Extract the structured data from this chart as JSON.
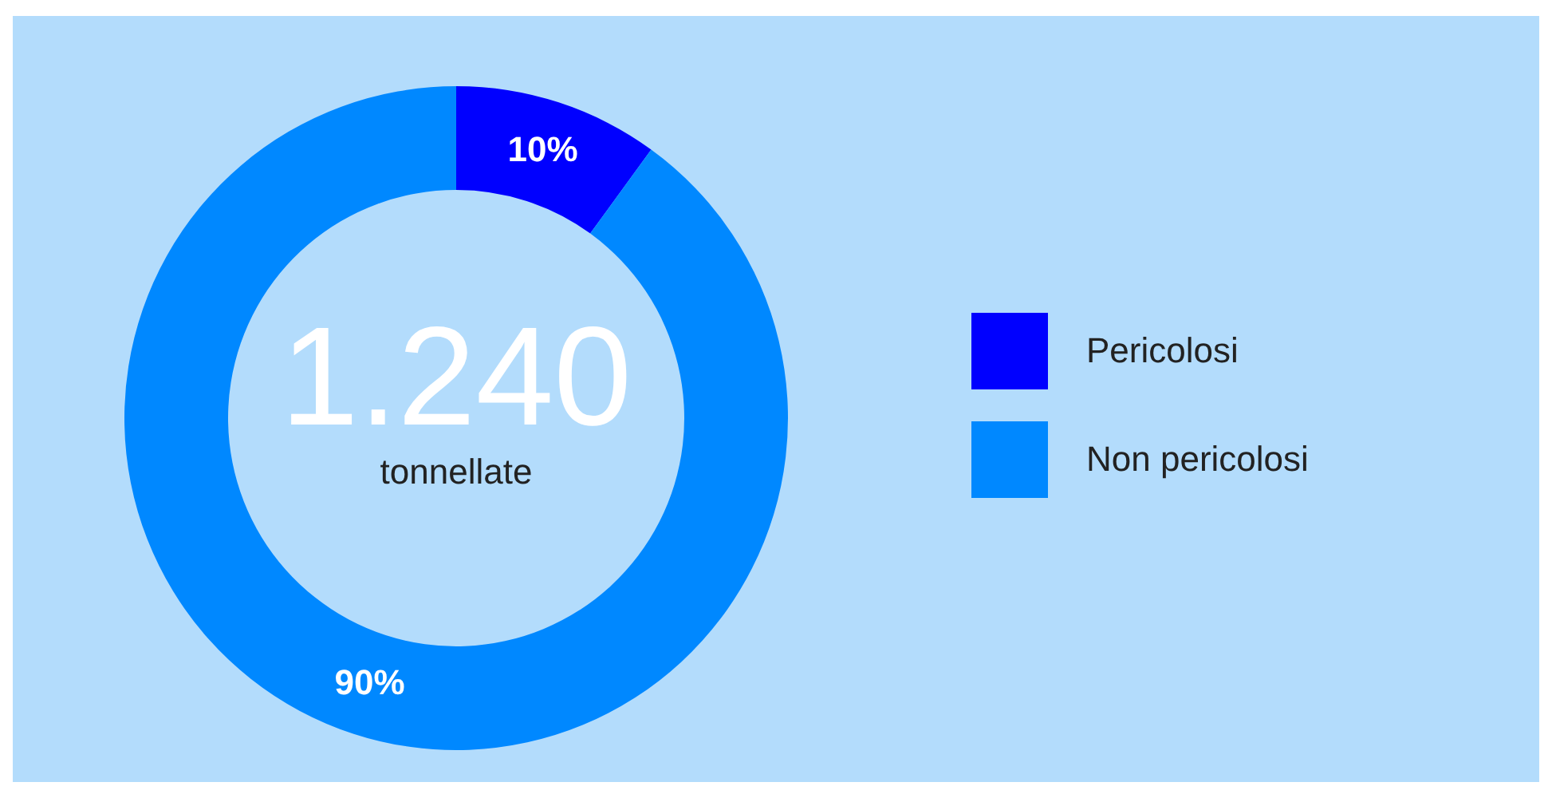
{
  "chart_data": {
    "type": "donut",
    "categories": [
      "Pericolosi",
      "Non pericolosi"
    ],
    "values": [
      10,
      90
    ],
    "colors": [
      "#0000ff",
      "#0088ff"
    ],
    "value_labels": [
      "10%",
      "90%"
    ],
    "annotations": [
      "1.240",
      "tonnellate"
    ],
    "legend": "right"
  }
}
